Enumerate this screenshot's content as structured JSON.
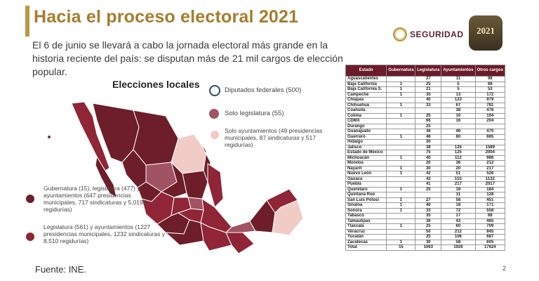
{
  "title": "Hacia el proceso electoral 2021",
  "intro": "El 6 de junio se llevará a cabo la jornada electoral más grande en la historia reciente del país: se disputan más de 21 mil cargos de elección popular.",
  "logos": {
    "seguridad": "SEGURIDAD",
    "year": "2021"
  },
  "map": {
    "title": "Elecciones locales",
    "colors": {
      "gubernatura": "#6d1e2a",
      "legislatura_ayuntamientos": "#8f2536",
      "solo_legislatura": "#a25363",
      "solo_ayuntamientos": "#f1cbc6"
    },
    "legend": [
      "Diputados federales (500)",
      "Solo legislatura (55)",
      "Solo ayuntamientos (49 presidencias municipales, 87 sindicaturas y 517 regidurías)",
      "Gubernatura (15), legislatura (477) y ayuntamientos (647 presidencias municipales, 717 sindicaturas y 5,0192 regidurías)",
      "Legislatura (561) y ayuntamientos (1227 presidencias municipales, 1232 sindicaturas y 8,510 regidurías)"
    ]
  },
  "source": "Fuente: INE.",
  "page_number": "2",
  "table": {
    "headers": [
      "Estado",
      "Gubernatura",
      "Legislatura",
      "Ayuntamientos",
      "Otros cargos"
    ],
    "rows": [
      [
        "Aguascalientes",
        "",
        "27",
        "11",
        "98"
      ],
      [
        "Baja California",
        "1",
        "25",
        "5",
        "68"
      ],
      [
        "Baja California S.",
        "1",
        "21",
        "5",
        "53"
      ],
      [
        "Campeche",
        "1",
        "35",
        "13",
        "172"
      ],
      [
        "Chiapas",
        "",
        "40",
        "123",
        "979"
      ],
      [
        "Chihuahua",
        "1",
        "33",
        "67",
        "781"
      ],
      [
        "Coahuila",
        "",
        "",
        "38",
        "476"
      ],
      [
        "Colima",
        "1",
        "25",
        "10",
        "104"
      ],
      [
        "CDMX",
        "",
        "66",
        "16",
        "204"
      ],
      [
        "Durango",
        "",
        "25",
        "",
        ""
      ],
      [
        "Guanajuato",
        "",
        "36",
        "46",
        "470"
      ],
      [
        "Guerrero",
        "1",
        "46",
        "80",
        "665"
      ],
      [
        "Hidalgo",
        "",
        "30",
        "",
        ""
      ],
      [
        "Jalisco",
        "",
        "38",
        "125",
        "1589"
      ],
      [
        "Estado de México",
        "",
        "75",
        "125",
        "2004"
      ],
      [
        "Michoacán",
        "1",
        "40",
        "112",
        "986"
      ],
      [
        "Morelos",
        "",
        "20",
        "36",
        "212"
      ],
      [
        "Nayarit",
        "1",
        "30",
        "20",
        "217"
      ],
      [
        "Nuevo León",
        "1",
        "42",
        "51",
        "526"
      ],
      [
        "Oaxaca",
        "",
        "42",
        "153",
        "1132"
      ],
      [
        "Puebla",
        "",
        "41",
        "217",
        "2017"
      ],
      [
        "Querétaro",
        "1",
        "25",
        "18",
        "184"
      ],
      [
        "Quintana Roo",
        "",
        "",
        "11",
        "128"
      ],
      [
        "San Luis Potosí",
        "1",
        "27",
        "58",
        "451"
      ],
      [
        "Sinaloa",
        "1",
        "40",
        "18",
        "171"
      ],
      [
        "Sonora",
        "1",
        "33",
        "72",
        "558"
      ],
      [
        "Tabasco",
        "",
        "35",
        "17",
        "68"
      ],
      [
        "Tamaulipas",
        "",
        "36",
        "43",
        "465"
      ],
      [
        "Tlaxcala",
        "1",
        "25",
        "60",
        "709"
      ],
      [
        "Veracruz",
        "",
        "50",
        "212",
        "845"
      ],
      [
        "Yucatán",
        "",
        "25",
        "106",
        "687"
      ],
      [
        "Zacatecas",
        "1",
        "30",
        "58",
        "605"
      ],
      [
        "Total",
        "15",
        "1063",
        "1926",
        "17624"
      ]
    ]
  }
}
